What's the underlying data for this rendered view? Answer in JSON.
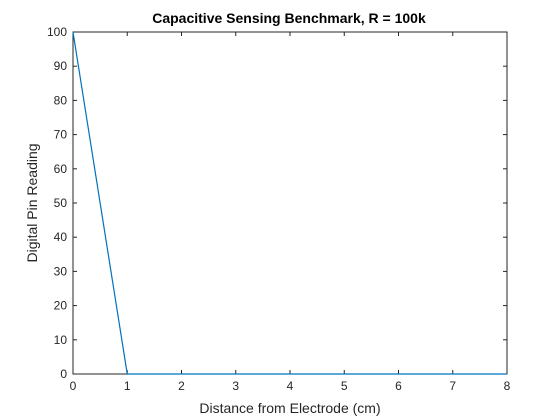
{
  "chart_data": {
    "type": "line",
    "title": "Capacitive Sensing Benchmark, R = 100k",
    "xlabel": "Distance from Electrode (cm)",
    "ylabel": "Digital Pin Reading",
    "xlim": [
      0,
      8
    ],
    "ylim": [
      0,
      100
    ],
    "xticks": [
      0,
      1,
      2,
      3,
      4,
      5,
      6,
      7,
      8
    ],
    "yticks": [
      0,
      10,
      20,
      30,
      40,
      50,
      60,
      70,
      80,
      90,
      100
    ],
    "grid": false,
    "series": [
      {
        "color": "#0072bd",
        "x": [
          0,
          1,
          2,
          3,
          4,
          5,
          6,
          7,
          8
        ],
        "y": [
          100,
          0,
          0,
          0,
          0,
          0,
          0,
          0,
          0
        ]
      }
    ]
  }
}
